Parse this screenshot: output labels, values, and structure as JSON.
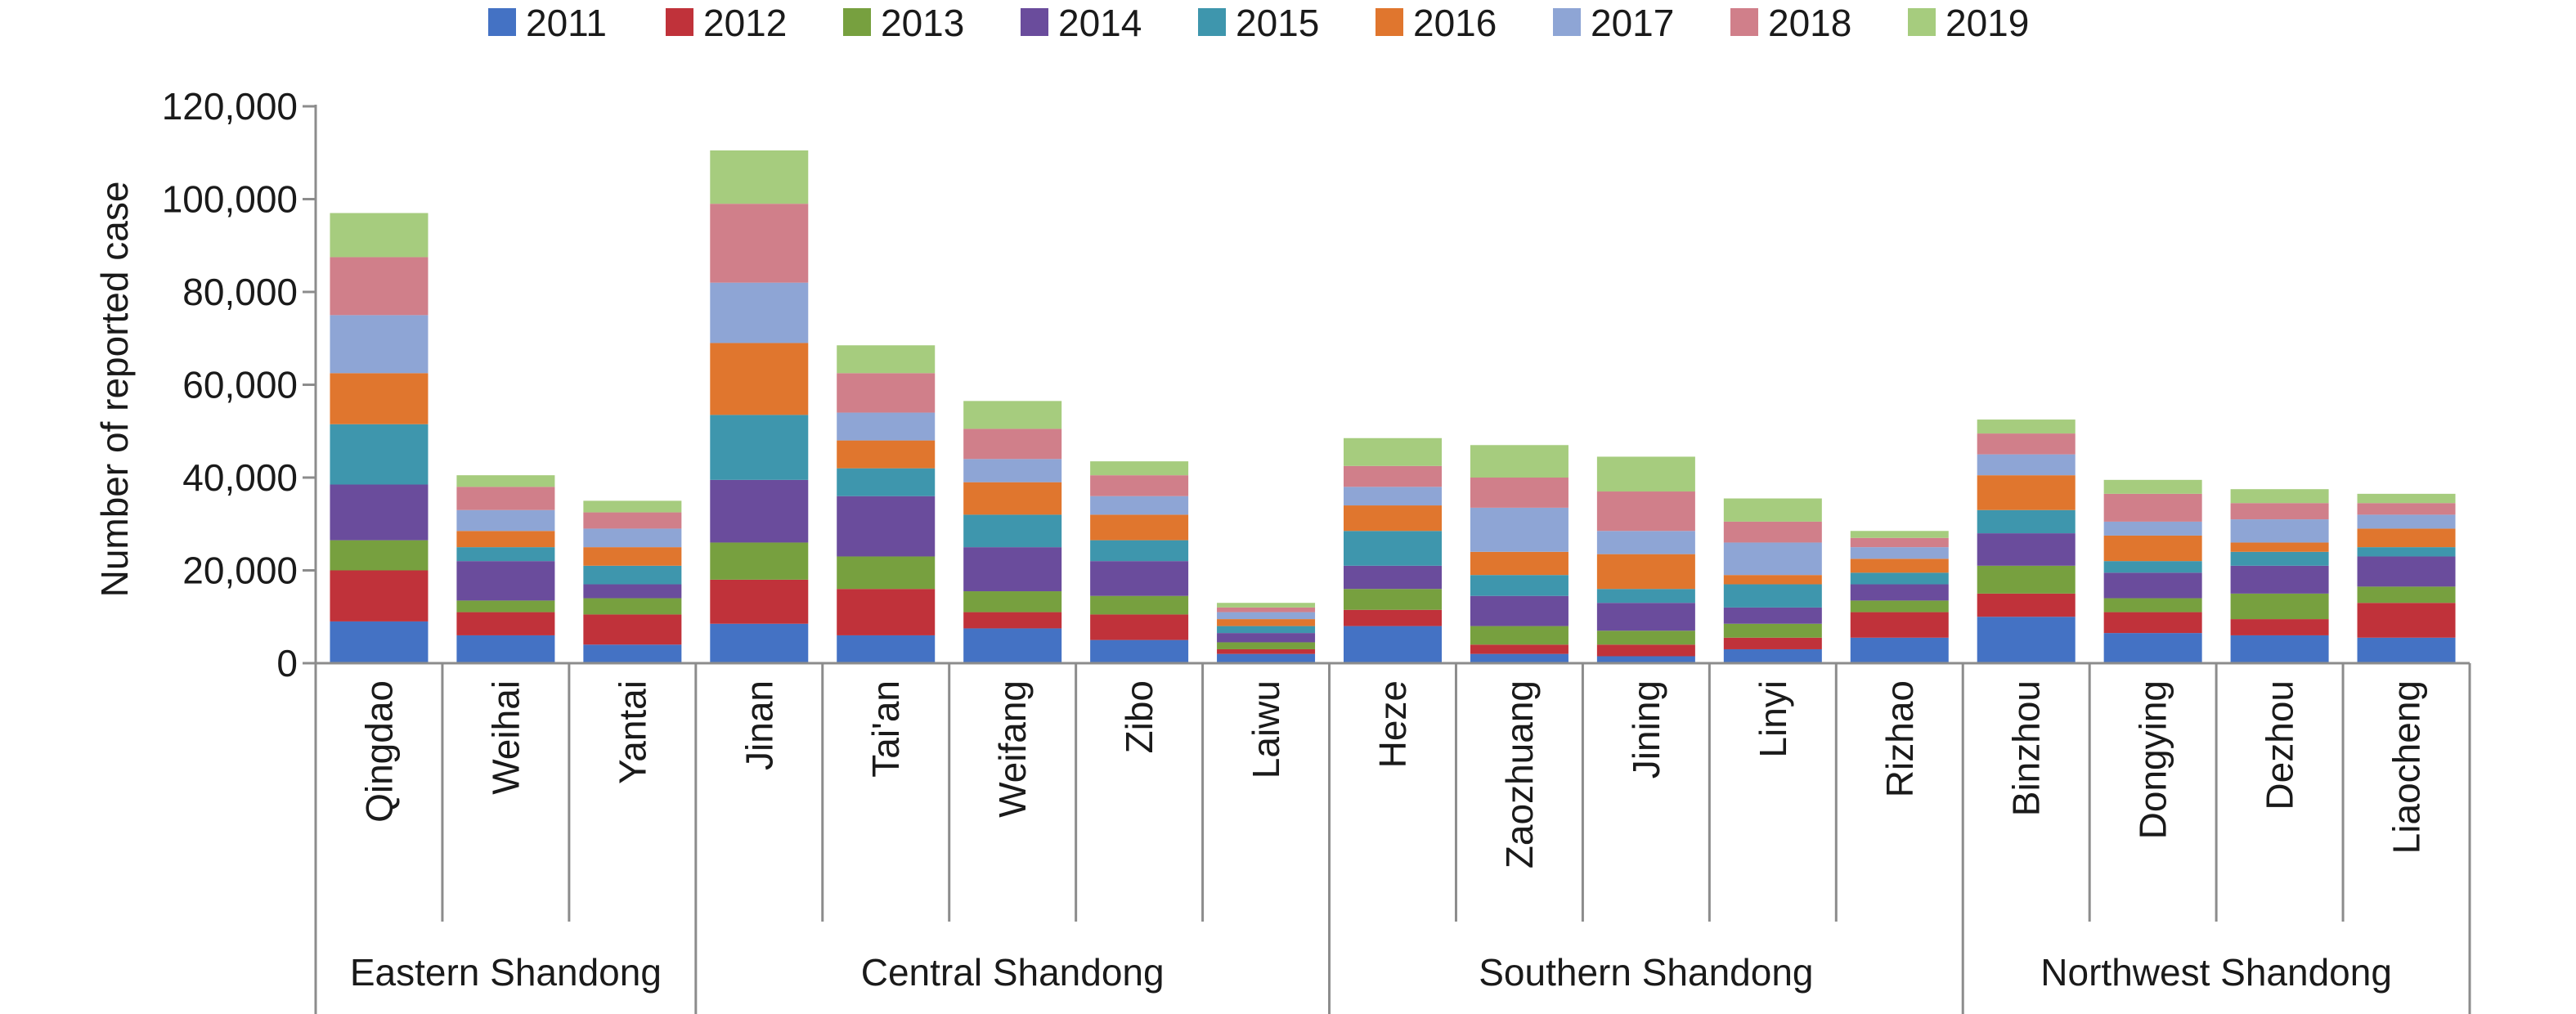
{
  "chart_data": {
    "type": "bar",
    "stacked": true,
    "title": "",
    "xlabel": "",
    "ylabel": "Number of reported case",
    "ylim": [
      0,
      120000
    ],
    "yticks": [
      "0",
      "20,000",
      "40,000",
      "60,000",
      "80,000",
      "100,000",
      "120,000"
    ],
    "ytick_values": [
      0,
      20000,
      40000,
      60000,
      80000,
      100000,
      120000
    ],
    "legend_position": "top",
    "grid": false,
    "categories": [
      "Qingdao",
      "Weihai",
      "Yantai",
      "Jinan",
      "Tai'an",
      "Weifang",
      "Zibo",
      "Laiwu",
      "Heze",
      "Zaozhuang",
      "Jining",
      "Linyi",
      "Rizhao",
      "Binzhou",
      "Dongying",
      "Dezhou",
      "Liaocheng"
    ],
    "groups": [
      {
        "label": "Eastern Shandong",
        "count": 3
      },
      {
        "label": "Central Shandong",
        "count": 5
      },
      {
        "label": "Southern Shandong",
        "count": 5
      },
      {
        "label": "Northwest Shandong",
        "count": 4
      }
    ],
    "series": [
      {
        "name": "2011",
        "color": "#4472C4",
        "values": [
          9000,
          6000,
          4000,
          8500,
          6000,
          7500,
          5000,
          2000,
          8000,
          2000,
          1500,
          3000,
          5500,
          10000,
          6500,
          6000,
          5500
        ]
      },
      {
        "name": "2012",
        "color": "#C0323A",
        "values": [
          11000,
          5000,
          6500,
          9500,
          10000,
          3500,
          5500,
          1000,
          3500,
          2000,
          2500,
          2500,
          5500,
          5000,
          4500,
          3500,
          7500
        ]
      },
      {
        "name": "2013",
        "color": "#77A03F",
        "values": [
          6500,
          2500,
          3500,
          8000,
          7000,
          4500,
          4000,
          1500,
          4500,
          4000,
          3000,
          3000,
          2500,
          6000,
          3000,
          5500,
          3500
        ]
      },
      {
        "name": "2014",
        "color": "#6A4C9C",
        "values": [
          12000,
          8500,
          3000,
          13500,
          13000,
          9500,
          7500,
          2000,
          5000,
          6500,
          6000,
          3500,
          3500,
          7000,
          5500,
          6000,
          6500
        ]
      },
      {
        "name": "2015",
        "color": "#3E96AD",
        "values": [
          13000,
          3000,
          4000,
          14000,
          6000,
          7000,
          4500,
          1500,
          7500,
          4500,
          3000,
          5000,
          2500,
          5000,
          2500,
          3000,
          2000
        ]
      },
      {
        "name": "2016",
        "color": "#E0762E",
        "values": [
          11000,
          3500,
          4000,
          15500,
          6000,
          7000,
          5500,
          1500,
          5500,
          5000,
          7500,
          2000,
          3000,
          7500,
          5500,
          2000,
          4000
        ]
      },
      {
        "name": "2017",
        "color": "#8EA5D5",
        "values": [
          12500,
          4500,
          4000,
          13000,
          6000,
          5000,
          4000,
          1500,
          4000,
          9500,
          5000,
          7000,
          2500,
          4500,
          3000,
          5000,
          3000
        ]
      },
      {
        "name": "2018",
        "color": "#D07F8A",
        "values": [
          12500,
          5000,
          3500,
          17000,
          8500,
          6500,
          4500,
          1000,
          4500,
          6500,
          8500,
          4500,
          2000,
          4500,
          6000,
          3500,
          2500
        ]
      },
      {
        "name": "2019",
        "color": "#A6CC7E",
        "values": [
          9500,
          2500,
          2500,
          11500,
          6000,
          6000,
          3000,
          1000,
          6000,
          7000,
          7500,
          5000,
          1500,
          3000,
          3000,
          3000,
          2000
        ]
      }
    ]
  }
}
